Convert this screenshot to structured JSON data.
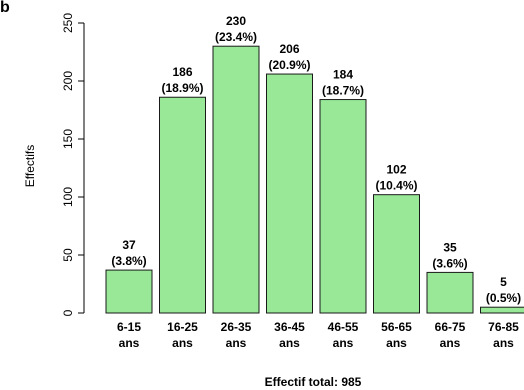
{
  "panel_letter": "b",
  "chart_data": {
    "type": "bar",
    "title": "",
    "xlabel": "",
    "ylabel": "Effectifs",
    "footer": "Effectif total: 985",
    "ylim": [
      0,
      250
    ],
    "yticks": [
      "0",
      "50",
      "100",
      "150",
      "200",
      "250"
    ],
    "categories": [
      {
        "line1": "6-15",
        "line2": "ans"
      },
      {
        "line1": "16-25",
        "line2": "ans"
      },
      {
        "line1": "26-35",
        "line2": "ans"
      },
      {
        "line1": "36-45",
        "line2": "ans"
      },
      {
        "line1": "46-55",
        "line2": "ans"
      },
      {
        "line1": "56-65",
        "line2": "ans"
      },
      {
        "line1": "66-75",
        "line2": "ans"
      },
      {
        "line1": "76-85",
        "line2": "ans"
      }
    ],
    "values": [
      37,
      186,
      230,
      206,
      184,
      102,
      35,
      5
    ],
    "value_labels": [
      "37",
      "186",
      "230",
      "206",
      "184",
      "102",
      "35",
      "5"
    ],
    "percent_labels": [
      "(3.8%)",
      "(18.9%)",
      "(23.4%)",
      "(20.9%)",
      "(18.7%)",
      "(10.4%)",
      "(3.6%)",
      "(0.5%)"
    ],
    "colors": {
      "bar_fill": "#98e898",
      "bar_stroke": "#1a1a1a",
      "axis": "#000000"
    }
  }
}
